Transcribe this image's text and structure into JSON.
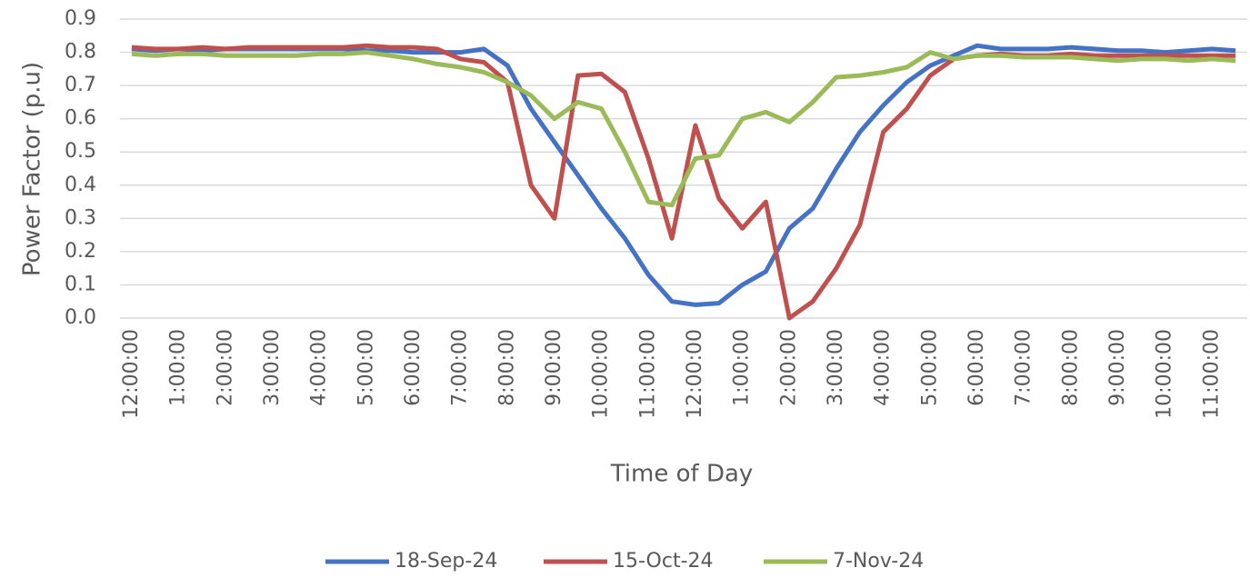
{
  "chart_data": {
    "type": "line",
    "y_label": "Power Factor (p.u)",
    "x_label": "Time of Day",
    "categories": [
      "12:00:00",
      null,
      "1:00:00",
      null,
      "2:00:00",
      null,
      "3:00:00",
      null,
      "4:00:00",
      null,
      "5:00:00",
      null,
      "6:00:00",
      null,
      "7:00:00",
      null,
      "8:00:00",
      null,
      "9:00:00",
      null,
      "10:00:00",
      null,
      "11:00:00",
      null,
      "12:00:00",
      null,
      "1:00:00",
      null,
      "2:00:00",
      null,
      "3:00:00",
      null,
      "4:00:00",
      null,
      "5:00:00",
      null,
      "6:00:00",
      null,
      "7:00:00",
      null,
      "8:00:00",
      null,
      "9:00:00",
      null,
      "10:00:00",
      null,
      "11:00:00",
      null
    ],
    "series": [
      {
        "name": "18-Sep-24",
        "color": "#4472c4",
        "values": [
          0.81,
          0.805,
          0.81,
          0.805,
          0.81,
          0.81,
          0.81,
          0.81,
          0.81,
          0.81,
          0.805,
          0.805,
          0.8,
          0.8,
          0.8,
          0.81,
          0.76,
          0.63,
          0.53,
          0.43,
          0.33,
          0.24,
          0.13,
          0.05,
          0.04,
          0.045,
          0.1,
          0.14,
          0.27,
          0.33,
          0.45,
          0.56,
          0.64,
          0.71,
          0.76,
          0.79,
          0.82,
          0.81,
          0.81,
          0.81,
          0.815,
          0.81,
          0.805,
          0.805,
          0.8,
          0.805,
          0.81,
          0.805
        ]
      },
      {
        "name": "15-Oct-24",
        "color": "#c0504d",
        "values": [
          0.815,
          0.81,
          0.81,
          0.815,
          0.81,
          0.815,
          0.815,
          0.815,
          0.815,
          0.815,
          0.82,
          0.815,
          0.815,
          0.81,
          0.78,
          0.77,
          0.71,
          0.4,
          0.3,
          0.73,
          0.735,
          0.68,
          0.48,
          0.24,
          0.58,
          0.36,
          0.27,
          0.35,
          0.0,
          0.05,
          0.15,
          0.28,
          0.56,
          0.63,
          0.73,
          0.78,
          0.79,
          0.795,
          0.79,
          0.79,
          0.795,
          0.79,
          0.79,
          0.79,
          0.79,
          0.79,
          0.79,
          0.79
        ]
      },
      {
        "name": "7-Nov-24",
        "color": "#9bbb59",
        "values": [
          0.795,
          0.79,
          0.795,
          0.795,
          0.79,
          0.79,
          0.79,
          0.79,
          0.795,
          0.795,
          0.8,
          0.79,
          0.78,
          0.765,
          0.755,
          0.74,
          0.71,
          0.67,
          0.6,
          0.65,
          0.63,
          0.5,
          0.35,
          0.34,
          0.48,
          0.49,
          0.6,
          0.62,
          0.59,
          0.65,
          0.725,
          0.73,
          0.74,
          0.755,
          0.8,
          0.78,
          0.79,
          0.79,
          0.785,
          0.785,
          0.785,
          0.78,
          0.775,
          0.78,
          0.78,
          0.775,
          0.78,
          0.775
        ]
      }
    ],
    "ylim": [
      0,
      0.9
    ],
    "yticks": [
      {
        "value": 0,
        "label": "0.0"
      },
      0.1,
      0.2,
      0.3,
      0.4,
      0.5,
      0.6,
      0.7,
      0.8,
      0.9
    ],
    "grid": true,
    "legend": "bottom"
  }
}
